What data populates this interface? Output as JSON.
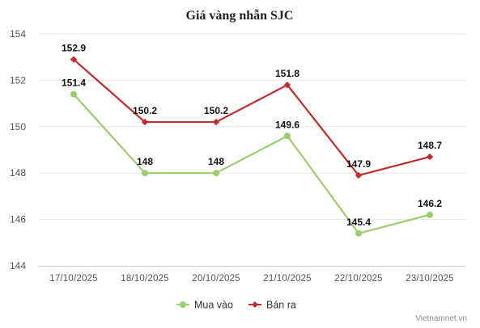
{
  "chart_data": {
    "type": "line",
    "title": "Giá vàng nhẫn SJC",
    "xlabel": "",
    "ylabel": "",
    "categories": [
      "17/10/2025",
      "18/10/2025",
      "20/10/2025",
      "21/10/2025",
      "22/10/2025",
      "23/10/2025"
    ],
    "ylim": [
      144,
      154
    ],
    "yticks": [
      144,
      146,
      148,
      150,
      152,
      154
    ],
    "grid": true,
    "legend": "bottom-center",
    "series": [
      {
        "name": "Mua vào",
        "color": "#9dcc6b",
        "marker": "circle",
        "values": [
          151.4,
          148,
          148,
          149.6,
          145.4,
          146.2
        ]
      },
      {
        "name": "Bán ra",
        "color": "#c42b2b",
        "marker": "diamond",
        "values": [
          152.9,
          150.2,
          150.2,
          151.8,
          147.9,
          148.7
        ]
      }
    ]
  },
  "credit": "Vietnamnet.vn"
}
